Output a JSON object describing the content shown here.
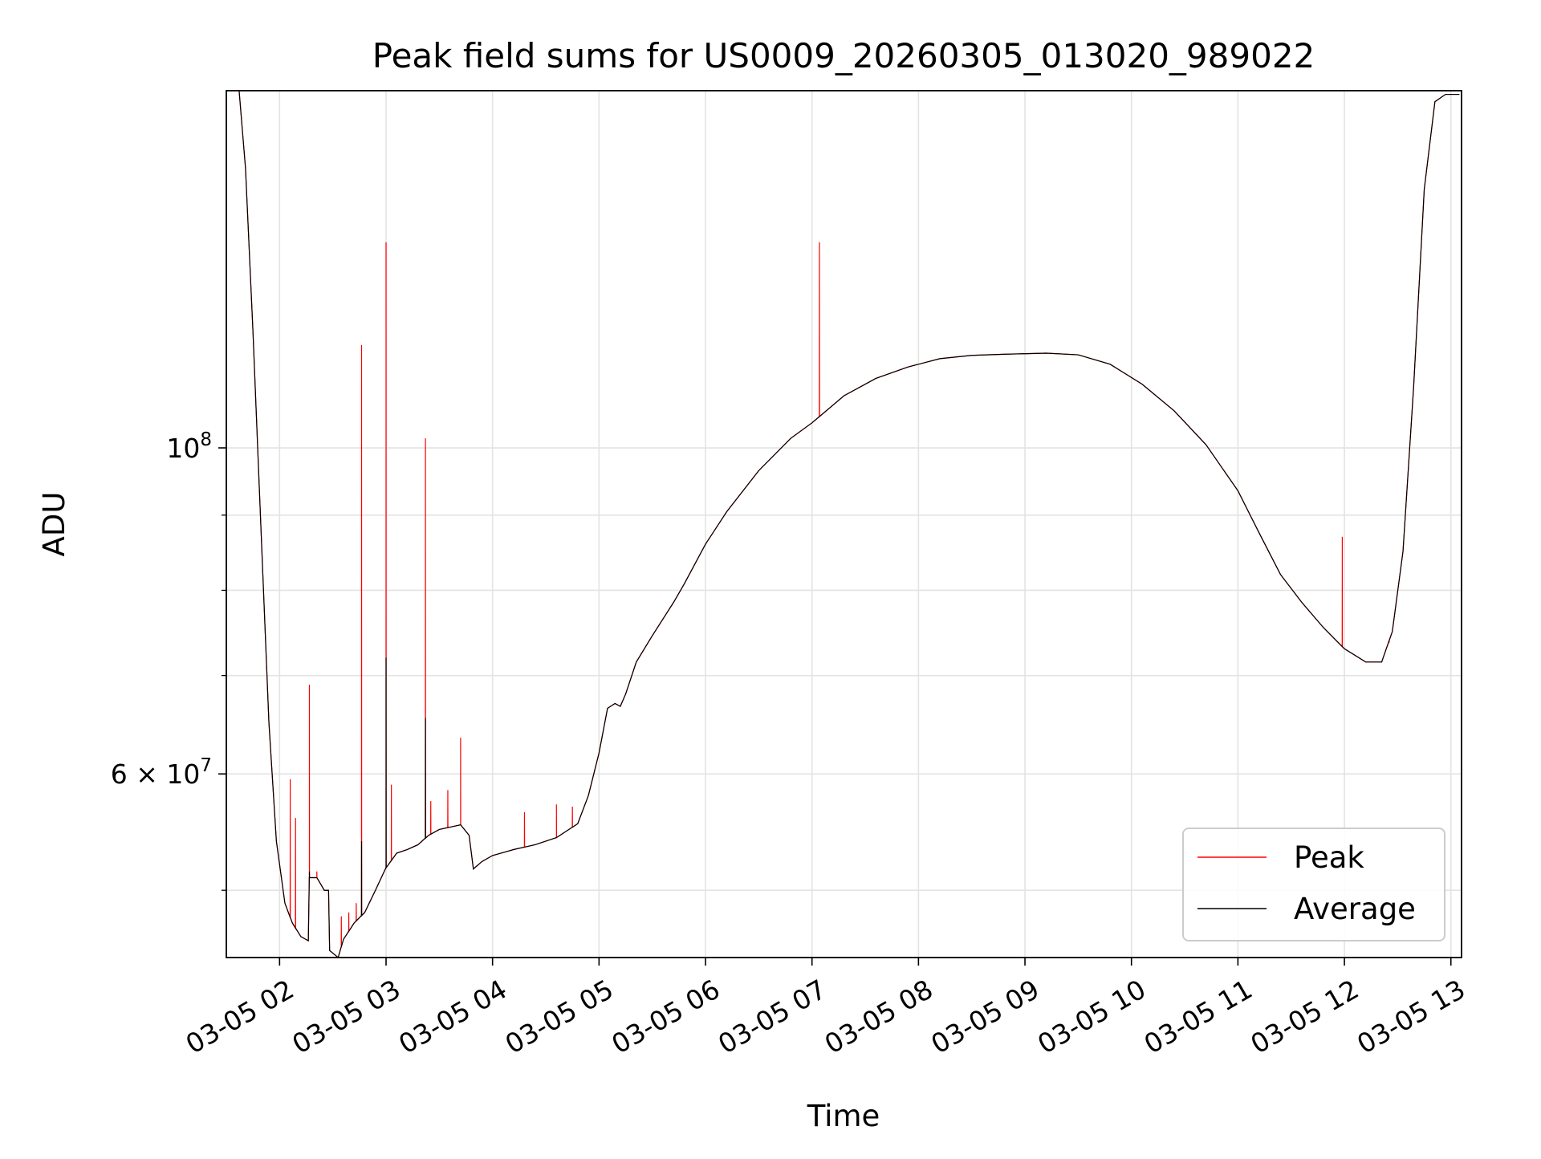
{
  "chart_data": {
    "type": "line",
    "title": "Peak field sums for US0009_20260305_013020_989022",
    "xlabel": "Time",
    "ylabel": "ADU",
    "yscale": "log",
    "xlim": [
      1.5,
      13.1
    ],
    "ylim": [
      45000000,
      175000000
    ],
    "x_unit": "hours on 03-05",
    "x_ticks": [
      {
        "x": 2,
        "label": "03-05 02"
      },
      {
        "x": 3,
        "label": "03-05 03"
      },
      {
        "x": 4,
        "label": "03-05 04"
      },
      {
        "x": 5,
        "label": "03-05 05"
      },
      {
        "x": 6,
        "label": "03-05 06"
      },
      {
        "x": 7,
        "label": "03-05 07"
      },
      {
        "x": 8,
        "label": "03-05 08"
      },
      {
        "x": 9,
        "label": "03-05 09"
      },
      {
        "x": 10,
        "label": "03-05 10"
      },
      {
        "x": 11,
        "label": "03-05 11"
      },
      {
        "x": 12,
        "label": "03-05 12"
      },
      {
        "x": 13,
        "label": "03-05 13"
      }
    ],
    "y_major_ticks": [
      {
        "value": 100000000,
        "base": "10",
        "exp": "8"
      },
      {
        "value": 60000000,
        "base": "6 × 10",
        "exp": "7"
      }
    ],
    "y_minor_ticks": [
      50000000,
      70000000,
      80000000,
      90000000
    ],
    "grid": true,
    "legend_position": "lower-right",
    "series": [
      {
        "name": "Peak",
        "color": "#ff0000",
        "baseline": [
          [
            1.62,
            175000000
          ],
          [
            1.68,
            155000000
          ],
          [
            1.75,
            120000000
          ],
          [
            1.82,
            90000000
          ],
          [
            1.9,
            65000000
          ],
          [
            1.97,
            54000000
          ],
          [
            2.05,
            49000000
          ],
          [
            2.12,
            47500000
          ],
          [
            2.2,
            46500000
          ],
          [
            2.27,
            46200000
          ],
          [
            2.28,
            51000000
          ],
          [
            2.35,
            51000000
          ],
          [
            2.42,
            50000000
          ],
          [
            2.46,
            50000000
          ],
          [
            2.47,
            45500000
          ],
          [
            2.55,
            45000000
          ],
          [
            2.6,
            46300000
          ],
          [
            2.7,
            47500000
          ],
          [
            2.8,
            48300000
          ],
          [
            2.9,
            50000000
          ],
          [
            3.0,
            51800000
          ],
          [
            3.1,
            53000000
          ],
          [
            3.2,
            53300000
          ],
          [
            3.3,
            53700000
          ],
          [
            3.4,
            54500000
          ],
          [
            3.5,
            55000000
          ],
          [
            3.6,
            55200000
          ],
          [
            3.7,
            55400000
          ],
          [
            3.78,
            54500000
          ],
          [
            3.82,
            51700000
          ],
          [
            3.9,
            52300000
          ],
          [
            4.0,
            52800000
          ],
          [
            4.2,
            53300000
          ],
          [
            4.4,
            53700000
          ],
          [
            4.6,
            54300000
          ],
          [
            4.8,
            55500000
          ],
          [
            4.9,
            58000000
          ],
          [
            5.0,
            62000000
          ],
          [
            5.08,
            66500000
          ],
          [
            5.15,
            67000000
          ],
          [
            5.2,
            66700000
          ],
          [
            5.25,
            68000000
          ],
          [
            5.35,
            71500000
          ],
          [
            5.5,
            74500000
          ],
          [
            5.7,
            78500000
          ],
          [
            5.8,
            80800000
          ],
          [
            6.0,
            86000000
          ],
          [
            6.2,
            90500000
          ],
          [
            6.5,
            96500000
          ],
          [
            6.8,
            101500000
          ],
          [
            7.0,
            104000000
          ],
          [
            7.3,
            108500000
          ],
          [
            7.6,
            111500000
          ],
          [
            7.9,
            113500000
          ],
          [
            8.2,
            115000000
          ],
          [
            8.5,
            115600000
          ],
          [
            8.8,
            115800000
          ],
          [
            9.2,
            116000000
          ],
          [
            9.5,
            115700000
          ],
          [
            9.8,
            114000000
          ],
          [
            10.1,
            110500000
          ],
          [
            10.4,
            106000000
          ],
          [
            10.7,
            100500000
          ],
          [
            11.0,
            93500000
          ],
          [
            11.2,
            87500000
          ],
          [
            11.4,
            82000000
          ],
          [
            11.6,
            78500000
          ],
          [
            11.8,
            75500000
          ],
          [
            12.0,
            73000000
          ],
          [
            12.2,
            71500000
          ],
          [
            12.35,
            71500000
          ],
          [
            12.45,
            75000000
          ],
          [
            12.55,
            85000000
          ],
          [
            12.65,
            110000000
          ],
          [
            12.75,
            150000000
          ],
          [
            12.85,
            172000000
          ],
          [
            12.95,
            174000000
          ],
          [
            13.08,
            174000000
          ]
        ],
        "spikes": [
          [
            2.1,
            59500000
          ],
          [
            2.15,
            56000000
          ],
          [
            2.28,
            69000000
          ],
          [
            2.35,
            51500000
          ],
          [
            2.58,
            48000000
          ],
          [
            2.65,
            48300000
          ],
          [
            2.72,
            49000000
          ],
          [
            2.77,
            117500000
          ],
          [
            3.0,
            138000000
          ],
          [
            3.05,
            59000000
          ],
          [
            3.37,
            101500000
          ],
          [
            3.42,
            57500000
          ],
          [
            3.58,
            58500000
          ],
          [
            3.7,
            63500000
          ],
          [
            4.3,
            56500000
          ],
          [
            4.6,
            57200000
          ],
          [
            4.75,
            57000000
          ],
          [
            7.07,
            138000000
          ],
          [
            11.98,
            87000000
          ],
          [
            12.42,
            73700000
          ]
        ]
      },
      {
        "name": "Average",
        "color": "#000000",
        "spikes": [
          [
            2.28,
            51500000
          ],
          [
            2.77,
            54000000
          ],
          [
            3.0,
            72000000
          ],
          [
            3.37,
            65500000
          ]
        ]
      }
    ]
  }
}
